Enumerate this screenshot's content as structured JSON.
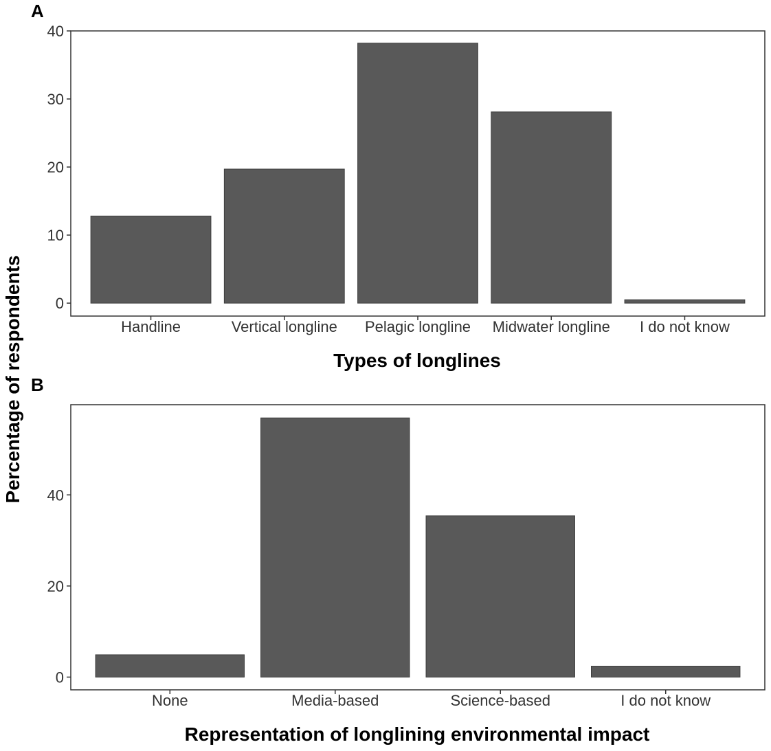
{
  "ylabel": "Percentage of respondents",
  "chart_data": [
    {
      "panel": "A",
      "type": "bar",
      "categories": [
        "Handline",
        "Vertical longline",
        "Pelagic longline",
        "Midwater longline",
        "I do not know"
      ],
      "values": [
        12.8,
        19.7,
        38.2,
        28.1,
        0.5
      ],
      "xlabel": "Types of longlines",
      "ylim": [
        -1.9,
        40
      ],
      "yticks": [
        0,
        10,
        20,
        30,
        40
      ],
      "grid": false
    },
    {
      "panel": "B",
      "type": "bar",
      "categories": [
        "None",
        "Media-based",
        "Science-based",
        "I do not know"
      ],
      "values": [
        4.9,
        56.9,
        35.4,
        2.4
      ],
      "xlabel": "Representation of longlining environmental impact",
      "ylim": [
        -2.8,
        59.8
      ],
      "yticks": [
        0,
        20,
        40
      ],
      "grid": false
    }
  ]
}
